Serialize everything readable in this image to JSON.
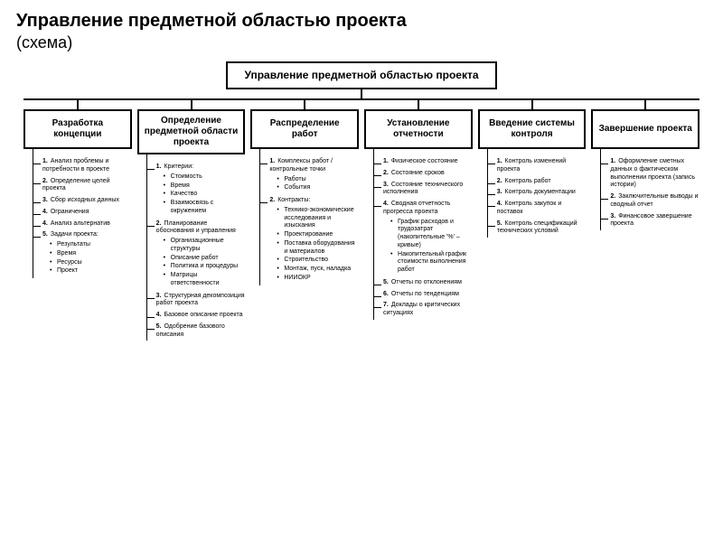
{
  "page": {
    "title": "Управление предметной областью проекта",
    "subtitle": "(схема)"
  },
  "root": {
    "label": "Управление предметной областью проекта"
  },
  "branches": [
    {
      "title": "Разработка концепции",
      "items": [
        {
          "num": "1.",
          "label": "Анализ проблемы и потребности в проекте"
        },
        {
          "num": "2.",
          "label": "Определение целей проекта"
        },
        {
          "num": "3.",
          "label": "Сбор исходных данных"
        },
        {
          "num": "4.",
          "label": "Ограничения"
        },
        {
          "num": "4.",
          "label": "Анализ альтернатив"
        },
        {
          "num": "5.",
          "label": "Задачи проекта:",
          "subs": [
            "Результаты",
            "Время",
            "Ресурсы",
            "Проект"
          ]
        }
      ]
    },
    {
      "title": "Определение предметной области проекта",
      "items": [
        {
          "num": "1.",
          "label": "Критерии:",
          "subs": [
            "Стоимость",
            "Время",
            "Качество",
            "Взаимосвязь с окружением"
          ]
        },
        {
          "num": "2.",
          "label": "Планирование обоснования и управления",
          "subs": [
            "Организационные структуры",
            "Описание работ",
            "Политика и процедуры",
            "Матрицы ответственности"
          ]
        },
        {
          "num": "3.",
          "label": "Структурная декомпозиция работ проекта"
        },
        {
          "num": "4.",
          "label": "Базовое описание проекта"
        },
        {
          "num": "5.",
          "label": "Одобрение базового описания"
        }
      ]
    },
    {
      "title": "Распределение работ",
      "items": [
        {
          "num": "1.",
          "label": "Комплексы работ / контрольные точки",
          "subs": [
            "Работы",
            "События"
          ]
        },
        {
          "num": "2.",
          "label": "Контракты:",
          "subs": [
            "Технико-экономические исследования и изыскания",
            "Проектирование",
            "Поставка оборудования и материалов",
            "Строительство",
            "Монтаж, пуск, наладка",
            "НИИОКР"
          ]
        }
      ]
    },
    {
      "title": "Установление отчетности",
      "items": [
        {
          "num": "1.",
          "label": "Физическое состояние"
        },
        {
          "num": "2.",
          "label": "Состояние сроков"
        },
        {
          "num": "3.",
          "label": "Состояние технического исполнения"
        },
        {
          "num": "4.",
          "label": "Сводная отчетность прогресса проекта",
          "subs": [
            "График расходов и трудозатрат (накопительные '%' – кривые)",
            "Накопительный график стоимости выполнения работ"
          ]
        },
        {
          "num": "5.",
          "label": "Отчеты по отклонениям"
        },
        {
          "num": "6.",
          "label": "Отчеты по тенденциям"
        },
        {
          "num": "7.",
          "label": "Доклады о критических ситуациях"
        }
      ]
    },
    {
      "title": "Введение системы контроля",
      "items": [
        {
          "num": "1.",
          "label": "Контроль изменений проекта"
        },
        {
          "num": "2.",
          "label": "Контроль работ"
        },
        {
          "num": "3.",
          "label": "Контроль документации"
        },
        {
          "num": "4.",
          "label": "Контроль закупок и поставок"
        },
        {
          "num": "5.",
          "label": "Контроль спецификаций технических условий"
        }
      ]
    },
    {
      "title": "Завершение проекта",
      "items": [
        {
          "num": "1.",
          "label": "Оформление сметных данных о фактическом выполнении проекта (запись истории)"
        },
        {
          "num": "2.",
          "label": "Заключительные выводы и сводный отчет"
        },
        {
          "num": "3.",
          "label": "Финансовое завершение проекта"
        }
      ]
    }
  ],
  "style": {
    "background_color": "#ffffff",
    "text_color": "#000000",
    "border_color": "#000000",
    "title_fontsize": 20,
    "subtitle_fontsize": 18,
    "root_fontsize": 12,
    "branch_title_fontsize": 10,
    "item_fontsize": 7
  }
}
